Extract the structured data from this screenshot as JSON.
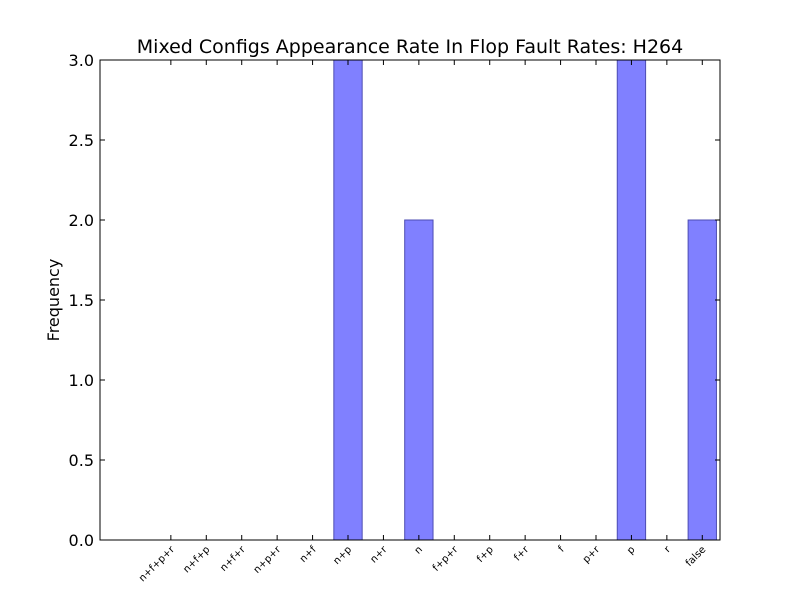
{
  "chart_data": {
    "type": "bar",
    "title": "Mixed Configs Appearance Rate In Flop Fault Rates: H264",
    "xlabel": "",
    "ylabel": "Frequency",
    "categories": [
      "n+f+p+r",
      "n+f+p",
      "n+f+r",
      "n+p+r",
      "n+f",
      "n+p",
      "n+r",
      "n",
      "f+p+r",
      "f+p",
      "f+r",
      "f",
      "p+r",
      "p",
      "r",
      "false"
    ],
    "values": [
      0,
      0,
      0,
      0,
      0,
      3,
      0,
      2,
      0,
      0,
      0,
      0,
      0,
      3,
      0,
      2
    ],
    "ylim": [
      0,
      3
    ],
    "yticks": [
      "0.0",
      "0.5",
      "1.0",
      "1.5",
      "2.0",
      "2.5",
      "3.0"
    ],
    "bar_color": "#8080ff",
    "bar_edge_color": "#4d4db3",
    "grid": false,
    "legend": "none"
  }
}
